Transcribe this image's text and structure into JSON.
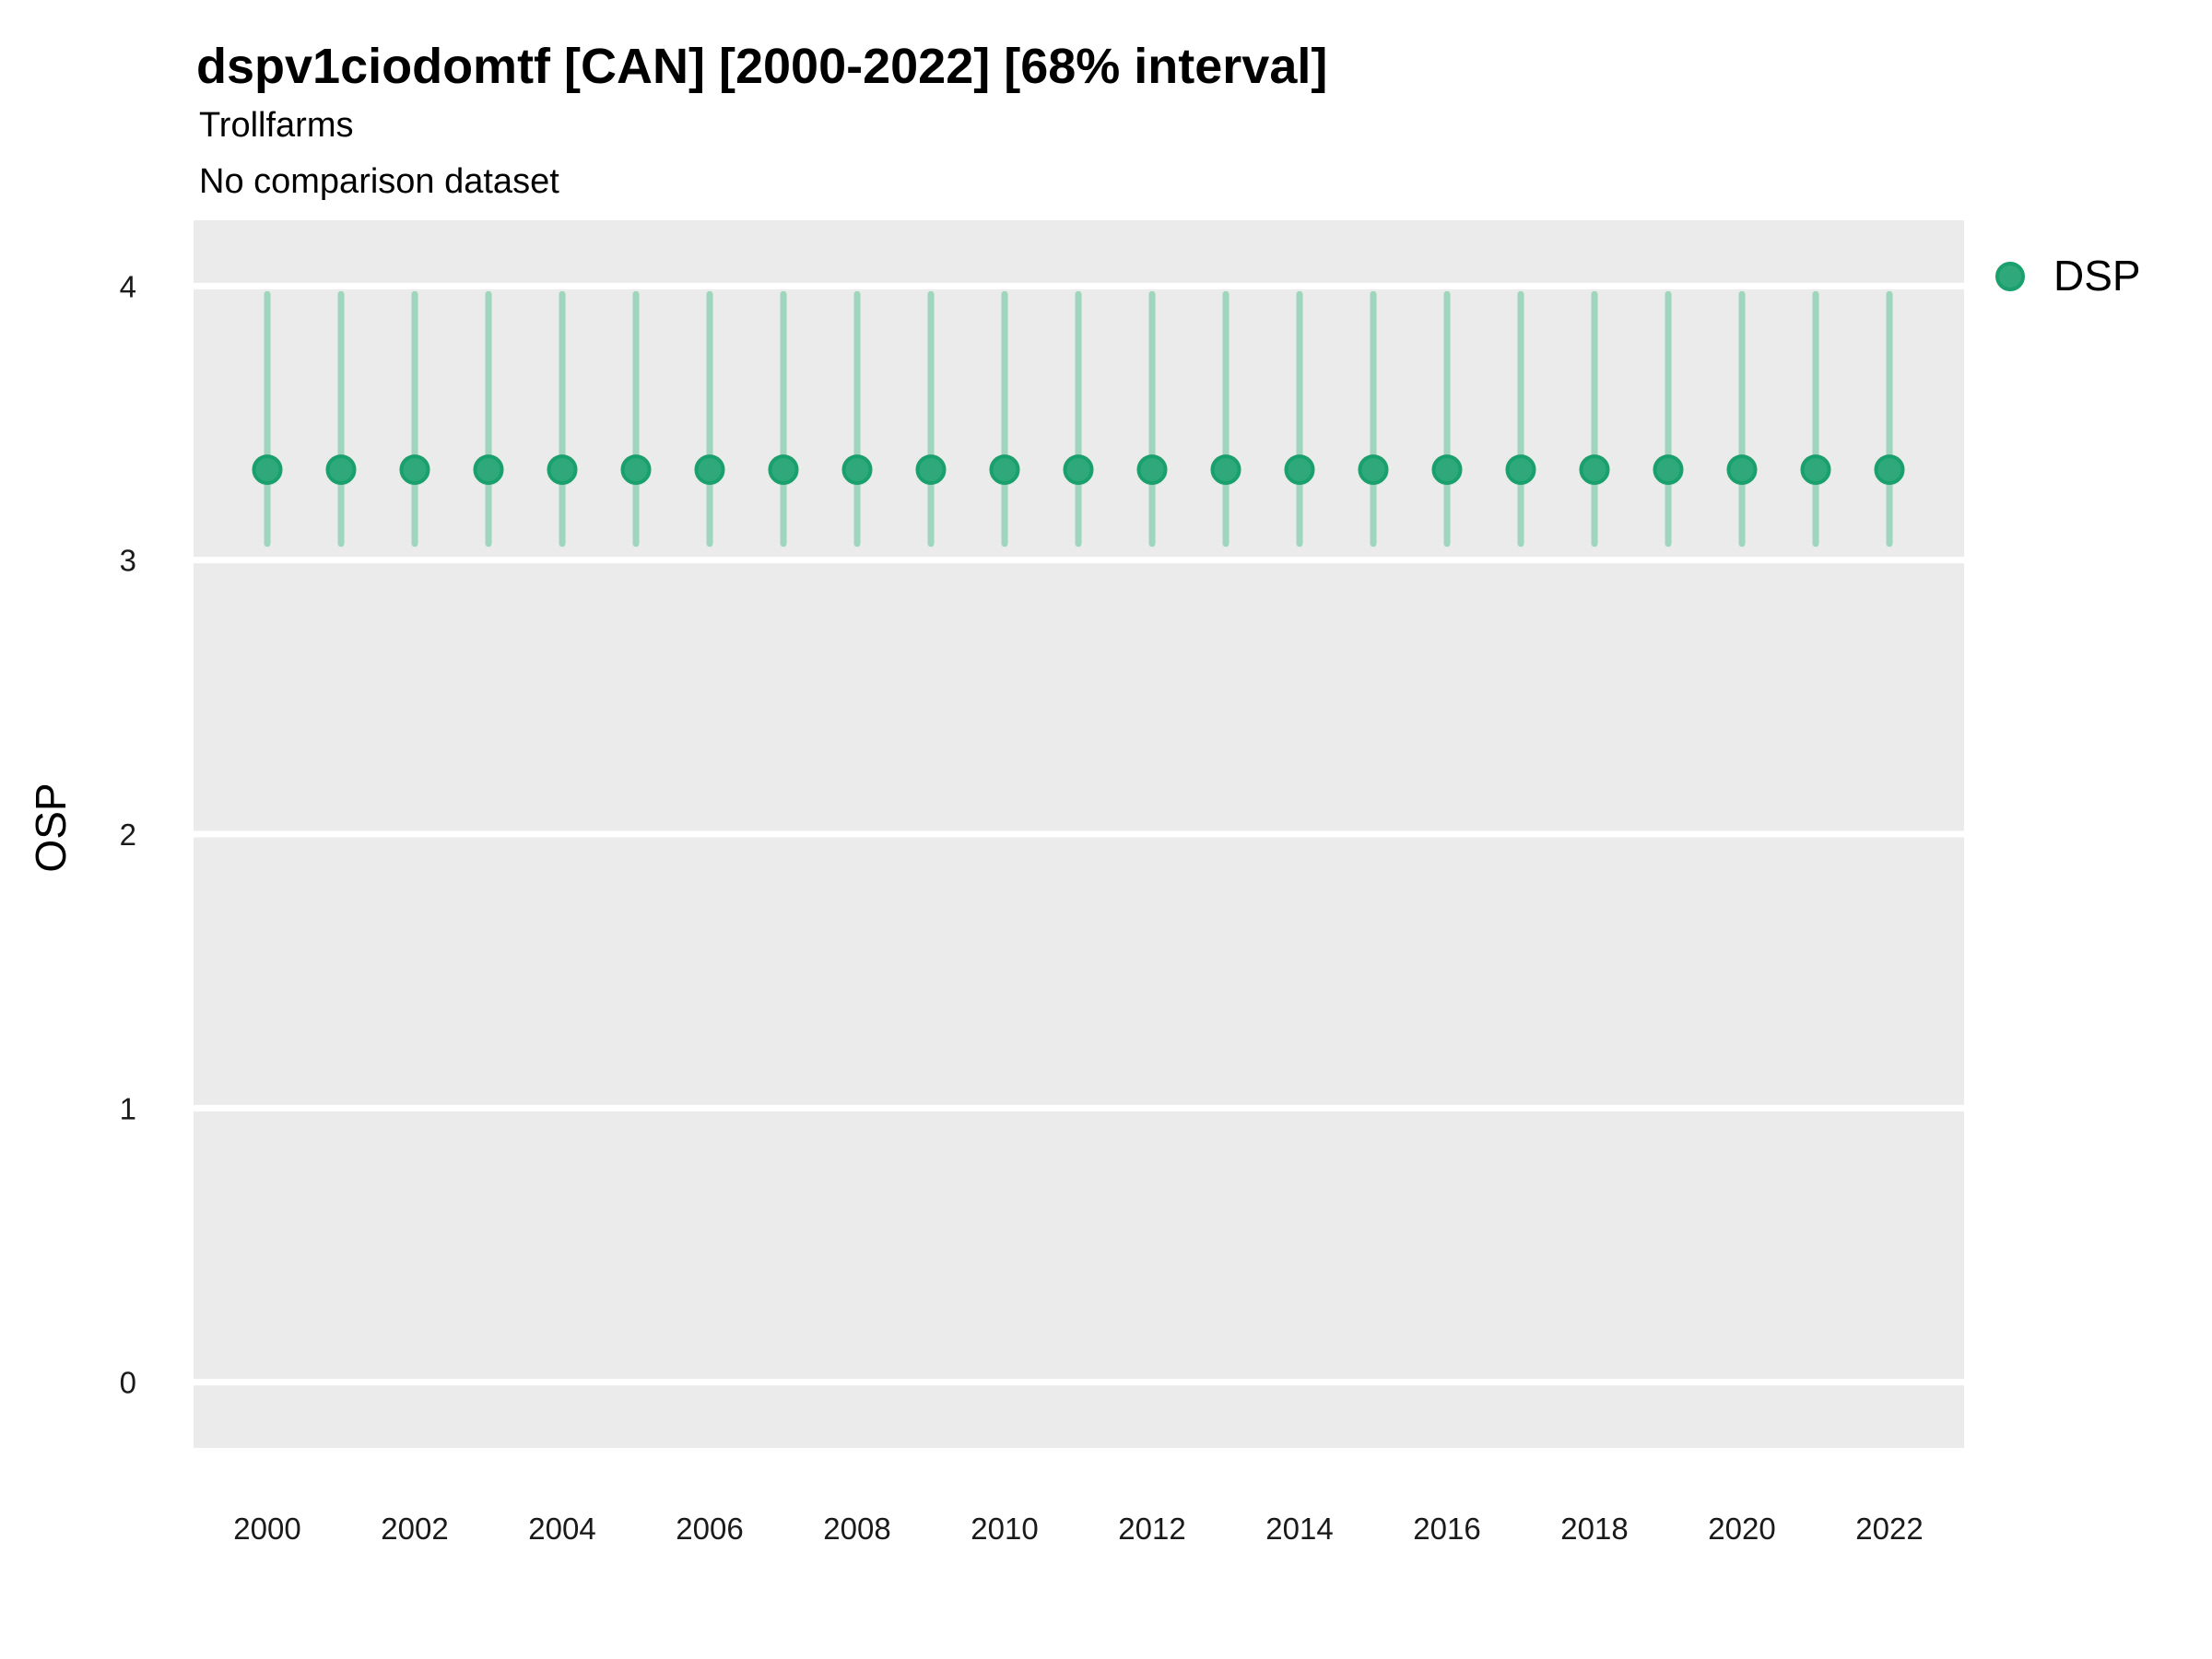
{
  "header": {
    "title": "dspv1ciodomtf [CAN] [2000-2022] [68% interval]",
    "subtitle": "Trollfarms",
    "note": "No comparison dataset"
  },
  "axes": {
    "y_title": "OSP",
    "x_title": ""
  },
  "legend": {
    "position": "right",
    "items": [
      {
        "label": "DSP",
        "color": "#2fa97c"
      }
    ]
  },
  "colors": {
    "point_fill": "#2fa97c",
    "point_stroke": "#1aa06c",
    "interval": "#9dd6bd",
    "panel_bg": "#ebebeb",
    "gridline": "#ffffff",
    "tick_label": "#1a1a1a",
    "text": "#000000"
  },
  "chart_data": {
    "type": "scatter",
    "subtype": "pointrange",
    "title": "dspv1ciodomtf [CAN] [2000-2022] [68% interval]",
    "subtitle": "Trollfarms",
    "note": "No comparison dataset",
    "xlabel": "",
    "ylabel": "OSP",
    "interval_level": "68%",
    "x": [
      2000,
      2001,
      2002,
      2003,
      2004,
      2005,
      2006,
      2007,
      2008,
      2009,
      2010,
      2011,
      2012,
      2013,
      2014,
      2015,
      2016,
      2017,
      2018,
      2019,
      2020,
      2021,
      2022
    ],
    "series": [
      {
        "name": "DSP",
        "values": [
          3.33,
          3.33,
          3.33,
          3.33,
          3.33,
          3.33,
          3.33,
          3.33,
          3.33,
          3.33,
          3.33,
          3.33,
          3.33,
          3.33,
          3.33,
          3.33,
          3.33,
          3.33,
          3.33,
          3.33,
          3.33,
          3.33,
          3.33
        ],
        "lower": [
          3.06,
          3.06,
          3.06,
          3.06,
          3.06,
          3.06,
          3.06,
          3.06,
          3.06,
          3.06,
          3.06,
          3.06,
          3.06,
          3.06,
          3.06,
          3.06,
          3.06,
          3.06,
          3.06,
          3.06,
          3.06,
          3.06,
          3.06
        ],
        "upper": [
          3.97,
          3.97,
          3.97,
          3.97,
          3.97,
          3.97,
          3.97,
          3.97,
          3.97,
          3.97,
          3.97,
          3.97,
          3.97,
          3.97,
          3.97,
          3.97,
          3.97,
          3.97,
          3.97,
          3.97,
          3.97,
          3.97,
          3.97
        ]
      }
    ],
    "x_ticks": [
      2000,
      2002,
      2004,
      2006,
      2008,
      2010,
      2012,
      2014,
      2016,
      2018,
      2020,
      2022
    ],
    "y_ticks": [
      0,
      1,
      2,
      3,
      4
    ],
    "xlim": [
      1999,
      2023
    ],
    "ylim": [
      -0.24,
      4.24
    ],
    "grid": "horizontal-major-only",
    "legend_position": "right"
  }
}
